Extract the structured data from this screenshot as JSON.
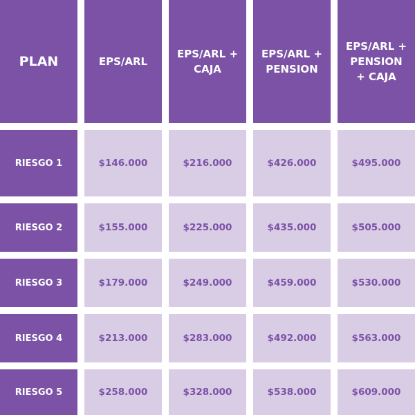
{
  "colors": {
    "primary": "#7B52A6",
    "cell_bg": "#D9CCE5",
    "header_text": "#FFFFFF"
  },
  "headers": [
    "PLAN",
    "EPS/ARL",
    "EPS/ARL +\nCAJA",
    "EPS/ARL +\nPENSION",
    "EPS/ARL +\nPENSION\n+ CAJA"
  ],
  "rows": [
    {
      "label": "RIESGO 1",
      "prices": [
        "$146.000",
        "$216.000",
        "$426.000",
        "$495.000"
      ]
    },
    {
      "label": "RIESGO 2",
      "prices": [
        "$155.000",
        "$225.000",
        "$435.000",
        "$505.000"
      ]
    },
    {
      "label": "RIESGO 3",
      "prices": [
        "$179.000",
        "$249.000",
        "$459.000",
        "$530.000"
      ]
    },
    {
      "label": "RIESGO 4",
      "prices": [
        "$213.000",
        "$283.000",
        "$492.000",
        "$563.000"
      ]
    },
    {
      "label": "RIESGO 5",
      "prices": [
        "$258.000",
        "$328.000",
        "$538.000",
        "$609.000"
      ]
    }
  ]
}
